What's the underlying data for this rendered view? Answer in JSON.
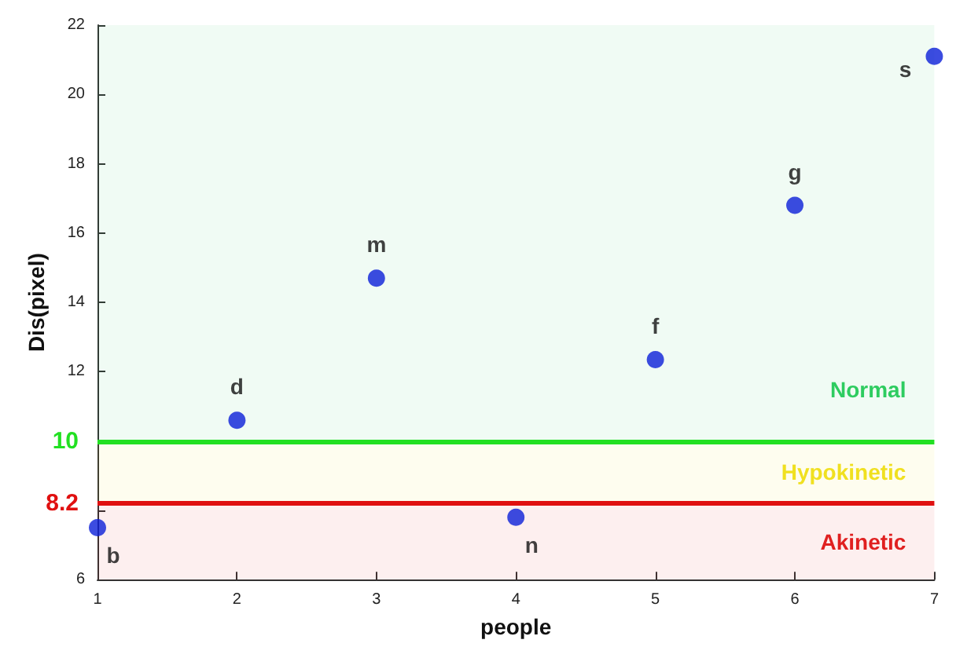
{
  "chart_data": {
    "type": "scatter",
    "xlabel": "people",
    "ylabel": "Dis(pixel)",
    "x": [
      1,
      2,
      3,
      4,
      5,
      6,
      7
    ],
    "series": [
      {
        "color": "#0b1fd8",
        "values": [
          7.5,
          10.6,
          14.7,
          7.8,
          12.35,
          16.8,
          21.1
        ],
        "value_labels": [
          "b",
          "d",
          "m",
          "n",
          "f",
          "g",
          "s"
        ]
      }
    ],
    "xlim": [
      1,
      7
    ],
    "xticks": [
      1,
      2,
      3,
      4,
      5,
      6,
      7
    ],
    "ylim": [
      6,
      22
    ],
    "yticks": [
      6,
      {
        "value": 8,
        "label": null
      },
      {
        "value": 10,
        "label": null
      },
      12,
      14,
      16,
      18,
      20,
      22
    ],
    "ref_lines": [
      {
        "axis": "y",
        "value": 10,
        "label": "10",
        "color": "#22e022"
      },
      {
        "axis": "y",
        "value": 8.2,
        "label": "8.2",
        "color": "#e01010"
      }
    ],
    "bands": [
      {
        "axis": "y",
        "from": 10,
        "to": 22,
        "label": "Normal",
        "color": "#2ecc60"
      },
      {
        "axis": "y",
        "from": 8.2,
        "to": 10,
        "label": "Hypokinetic",
        "color": "#f0e020"
      },
      {
        "axis": "y",
        "from": 6,
        "to": 8.2,
        "label": "Akinetic",
        "color": "#e02020"
      }
    ],
    "marker": "circle",
    "grid": false
  }
}
